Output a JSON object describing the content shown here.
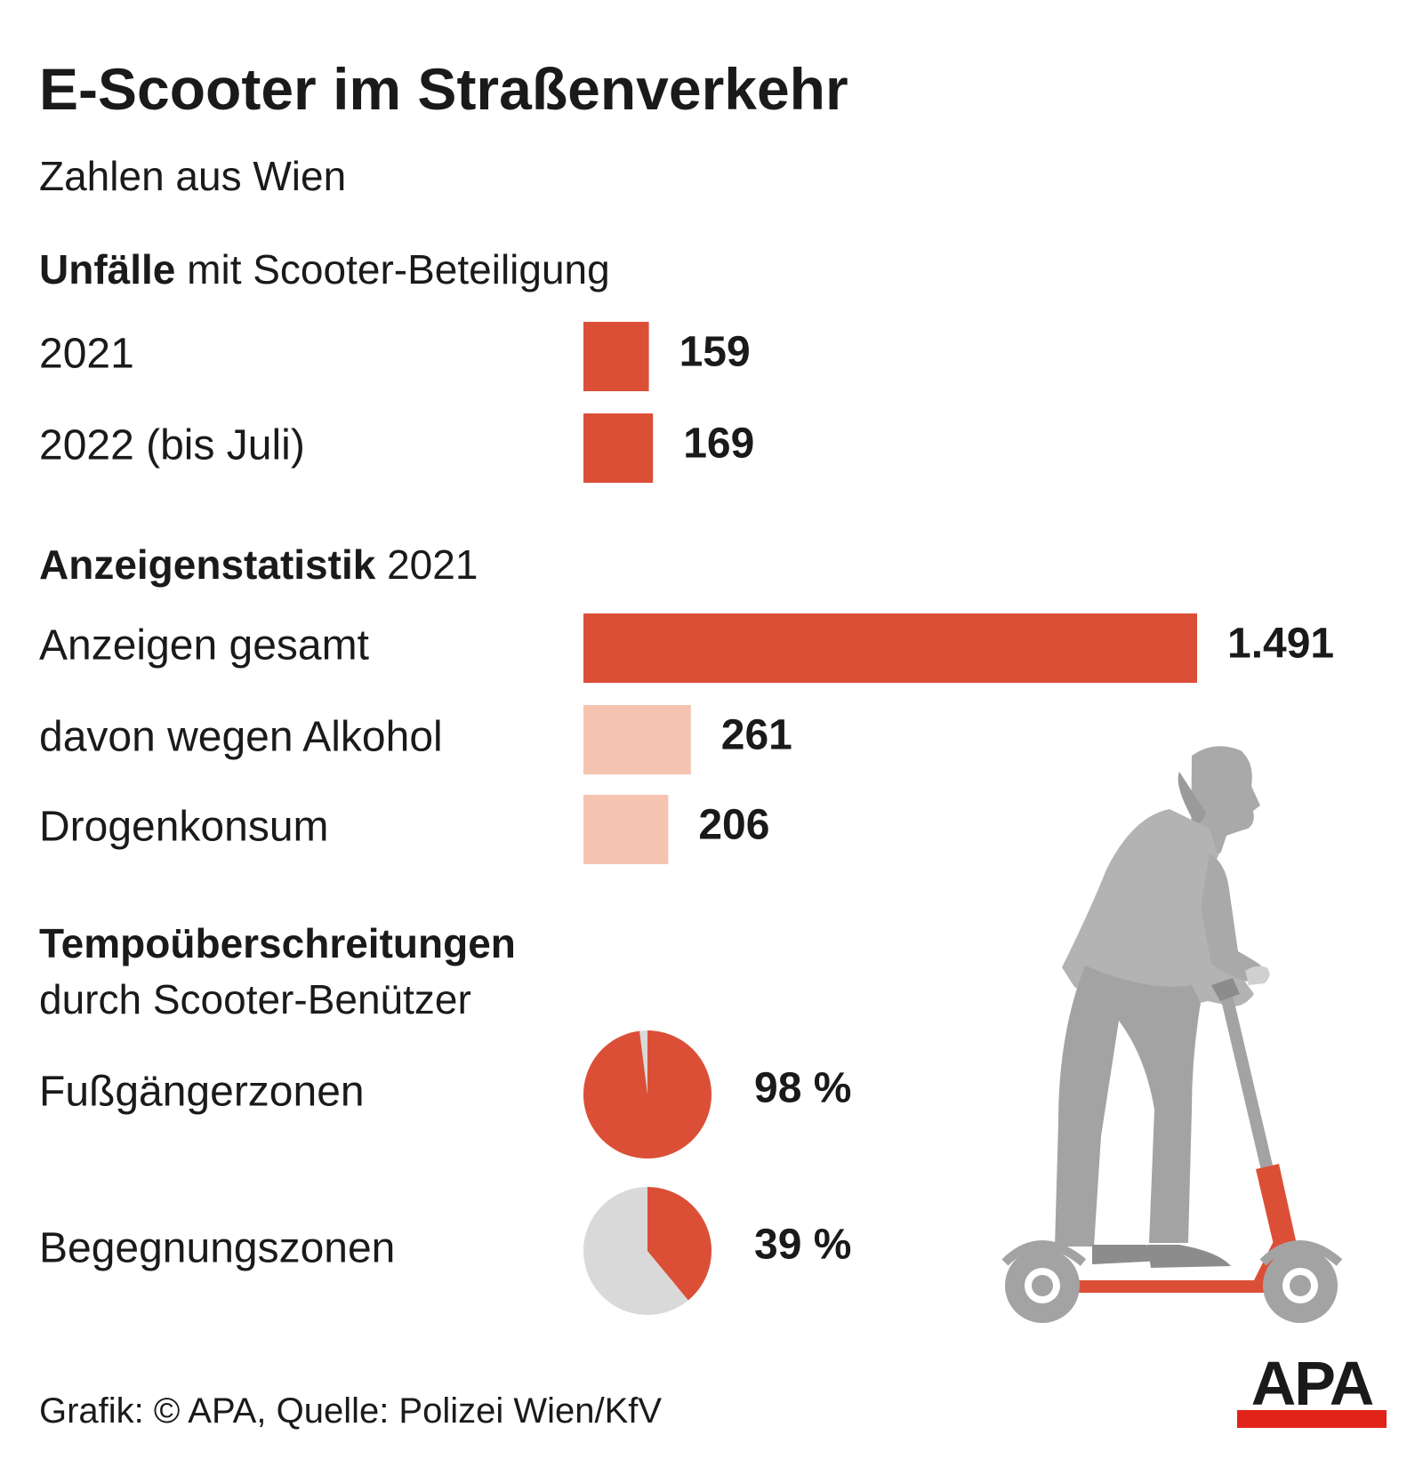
{
  "title": "E-Scooter im Straßenverkehr",
  "subtitle": "Zahlen aus Wien",
  "chart_data": [
    {
      "type": "bar",
      "title_bold": "Unfälle",
      "title_rest": "mit Scooter-Beteiligung",
      "categories": [
        "2021",
        "2022 (bis Juli)"
      ],
      "values": [
        159,
        169
      ],
      "colors": [
        "#dc4f37",
        "#dc4f37"
      ]
    },
    {
      "type": "bar",
      "title_bold": "Anzeigenstatistik",
      "title_rest": "2021",
      "categories": [
        "Anzeigen gesamt",
        "davon wegen Alkohol",
        "Drogenkonsum"
      ],
      "values": [
        1491,
        261,
        206
      ],
      "value_labels": [
        "1.491",
        "261",
        "206"
      ],
      "colors": [
        "#dc4f37",
        "#f4c4b0",
        "#f4c4b0"
      ]
    },
    {
      "type": "pie",
      "title_bold": "Tempoüberschreitungen",
      "title_rest": "durch Scooter-Benützer",
      "categories": [
        "Fußgängerzonen",
        "Begegnungszonen"
      ],
      "values": [
        98,
        39
      ],
      "value_labels": [
        "98 %",
        "39 %"
      ],
      "color": "#dc4f37",
      "rest_color": "#d9d9d9"
    }
  ],
  "footer": "Grafik: © APA, Quelle: Polizei Wien/KfV",
  "logo": "APA"
}
